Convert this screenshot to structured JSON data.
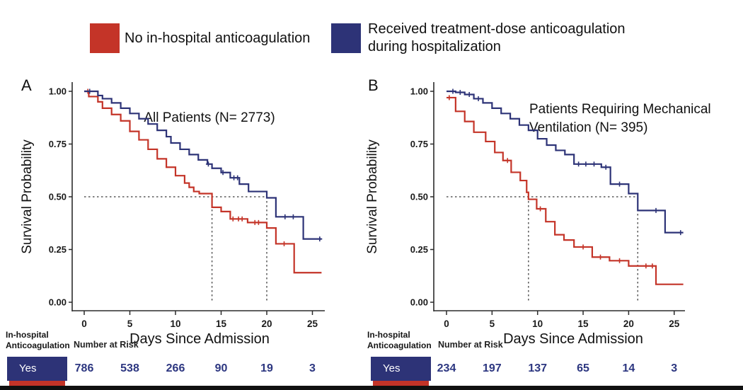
{
  "legend": {
    "items": [
      {
        "label": "No in-hospital anticoagulation",
        "color": "#C43428",
        "lines": [
          "No in-hospital anticoagulation"
        ]
      },
      {
        "label": "Received treatment-dose anticoagulation during hospitalization",
        "color": "#2D3377",
        "lines": [
          "Received treatment-dose anticoagulation",
          "during hospitalization"
        ]
      }
    ]
  },
  "colors": {
    "red": "#C43428",
    "navy": "#2D3377",
    "risk_number": "#2C3680",
    "axis": "#2b2b2b",
    "reference_line": "#5a5a5a",
    "bottom_bar": "#101010"
  },
  "chart_data": [
    {
      "type": "line",
      "subtype": "kaplan-meier-step",
      "panel_letter": "A",
      "title": "All Patients (N= 2773)",
      "title_lines": [
        "All Patients (N= 2773)"
      ],
      "xlabel": "Days Since Admission",
      "ylabel": "Survival Probability",
      "xlim": [
        0,
        26.5
      ],
      "ylim": [
        0,
        1
      ],
      "xticks": [
        0,
        5,
        10,
        15,
        20,
        25
      ],
      "ytick_labels": [
        "1.00",
        "0.75",
        "0.50",
        "0.25",
        "0.00"
      ],
      "grid": false,
      "reference_lines": {
        "survival_probability": 0.5,
        "median_day_no_anticoagulation": 14,
        "median_day_anticoagulation": 20
      },
      "series": [
        {
          "name": "No in-hospital anticoagulation",
          "color": "#C43428",
          "steps": [
            [
              0,
              1.0
            ],
            [
              0.5,
              0.975
            ],
            [
              1.5,
              0.95
            ],
            [
              2,
              0.92
            ],
            [
              3,
              0.89
            ],
            [
              4,
              0.86
            ],
            [
              5,
              0.81
            ],
            [
              6,
              0.77
            ],
            [
              7,
              0.725
            ],
            [
              8,
              0.68
            ],
            [
              9,
              0.64
            ],
            [
              10,
              0.6
            ],
            [
              11,
              0.565
            ],
            [
              11.5,
              0.545
            ],
            [
              12,
              0.525
            ],
            [
              12.6,
              0.515
            ],
            [
              14,
              0.45
            ],
            [
              15,
              0.43
            ],
            [
              16,
              0.395
            ],
            [
              17.9,
              0.378
            ],
            [
              20,
              0.352
            ],
            [
              21,
              0.277
            ],
            [
              23,
              0.14
            ],
            [
              26,
              0.14
            ]
          ],
          "censor_marks": [
            [
              0.4,
              1.0
            ],
            [
              16.3,
              0.395
            ],
            [
              16.9,
              0.395
            ],
            [
              17.3,
              0.395
            ],
            [
              18.7,
              0.378
            ],
            [
              19.1,
              0.378
            ],
            [
              21.9,
              0.277
            ]
          ]
        },
        {
          "name": "Received treatment-dose anticoagulation during hospitalization",
          "color": "#2D3377",
          "steps": [
            [
              0,
              1.0
            ],
            [
              1.5,
              0.98
            ],
            [
              2,
              0.965
            ],
            [
              3,
              0.945
            ],
            [
              4,
              0.92
            ],
            [
              5,
              0.895
            ],
            [
              6,
              0.87
            ],
            [
              7,
              0.845
            ],
            [
              8,
              0.815
            ],
            [
              9,
              0.785
            ],
            [
              9.5,
              0.755
            ],
            [
              10.5,
              0.725
            ],
            [
              11.5,
              0.7
            ],
            [
              12.5,
              0.675
            ],
            [
              13.5,
              0.655
            ],
            [
              14,
              0.635
            ],
            [
              15,
              0.615
            ],
            [
              16,
              0.59
            ],
            [
              17,
              0.56
            ],
            [
              18,
              0.525
            ],
            [
              20,
              0.495
            ],
            [
              21,
              0.405
            ],
            [
              24,
              0.3
            ],
            [
              26,
              0.3
            ]
          ],
          "censor_marks": [
            [
              0.6,
              1.0
            ],
            [
              13.6,
              0.655
            ],
            [
              15.2,
              0.615
            ],
            [
              16.4,
              0.59
            ],
            [
              16.8,
              0.59
            ],
            [
              22.0,
              0.405
            ],
            [
              22.9,
              0.405
            ],
            [
              25.8,
              0.3
            ]
          ]
        }
      ]
    },
    {
      "type": "line",
      "subtype": "kaplan-meier-step",
      "panel_letter": "B",
      "title": "Patients Requiring Mechanical Ventilation (N= 395)",
      "title_lines": [
        "Patients Requiring Mechanical",
        "Ventilation (N= 395)"
      ],
      "xlabel": "Days Since Admission",
      "ylabel": "Survival Probability",
      "xlim": [
        0,
        26.5
      ],
      "ylim": [
        0,
        1
      ],
      "xticks": [
        0,
        5,
        10,
        15,
        20,
        25
      ],
      "ytick_labels": [
        "1.00",
        "0.75",
        "0.50",
        "0.25",
        "0.00"
      ],
      "grid": false,
      "reference_lines": {
        "survival_probability": 0.5,
        "median_day_no_anticoagulation": 9,
        "median_day_anticoagulation": 21
      },
      "series": [
        {
          "name": "No in-hospital anticoagulation",
          "color": "#C43428",
          "steps": [
            [
              0,
              0.97
            ],
            [
              1,
              0.905
            ],
            [
              2,
              0.857
            ],
            [
              3,
              0.806
            ],
            [
              4.3,
              0.762
            ],
            [
              5.3,
              0.71
            ],
            [
              6.2,
              0.672
            ],
            [
              7.1,
              0.616
            ],
            [
              8.1,
              0.577
            ],
            [
              8.8,
              0.521
            ],
            [
              9,
              0.488
            ],
            [
              9.9,
              0.443
            ],
            [
              10.9,
              0.382
            ],
            [
              11.9,
              0.32
            ],
            [
              12.9,
              0.295
            ],
            [
              14,
              0.262
            ],
            [
              16,
              0.214
            ],
            [
              17.9,
              0.197
            ],
            [
              20,
              0.172
            ],
            [
              23,
              0.085
            ],
            [
              26,
              0.085
            ]
          ],
          "censor_marks": [
            [
              0.3,
              0.97
            ],
            [
              6.7,
              0.672
            ],
            [
              10.3,
              0.443
            ],
            [
              15,
              0.262
            ],
            [
              16.9,
              0.214
            ],
            [
              19,
              0.197
            ],
            [
              21.9,
              0.172
            ],
            [
              22.6,
              0.172
            ]
          ]
        },
        {
          "name": "Received treatment-dose anticoagulation during hospitalization",
          "color": "#2D3377",
          "steps": [
            [
              0,
              1.0
            ],
            [
              1,
              0.995
            ],
            [
              2,
              0.985
            ],
            [
              3,
              0.965
            ],
            [
              4,
              0.945
            ],
            [
              5,
              0.92
            ],
            [
              6,
              0.895
            ],
            [
              7,
              0.87
            ],
            [
              8,
              0.84
            ],
            [
              9,
              0.815
            ],
            [
              10,
              0.775
            ],
            [
              11,
              0.745
            ],
            [
              12,
              0.72
            ],
            [
              13,
              0.7
            ],
            [
              14,
              0.655
            ],
            [
              17,
              0.64
            ],
            [
              18,
              0.56
            ],
            [
              20,
              0.515
            ],
            [
              21,
              0.435
            ],
            [
              24,
              0.33
            ],
            [
              26,
              0.33
            ]
          ],
          "censor_marks": [
            [
              0.7,
              1.0
            ],
            [
              1.5,
              0.995
            ],
            [
              2.5,
              0.985
            ],
            [
              3.5,
              0.965
            ],
            [
              14.5,
              0.655
            ],
            [
              15.3,
              0.655
            ],
            [
              16.2,
              0.655
            ],
            [
              17.5,
              0.64
            ],
            [
              19,
              0.56
            ],
            [
              23,
              0.435
            ],
            [
              25.7,
              0.33
            ]
          ]
        }
      ]
    }
  ],
  "risk_tables": [
    {
      "panel": "A",
      "group_label_lines": [
        "In-hospital",
        "Anticoagulation"
      ],
      "header": "Number at Risk",
      "rows": [
        {
          "label": "Yes",
          "color": "#2D3377",
          "values": [
            786,
            538,
            266,
            90,
            19,
            3
          ]
        }
      ],
      "partial_next_row_color": "#C43428"
    },
    {
      "panel": "B",
      "group_label_lines": [
        "In-hospital",
        "Anticoagulation"
      ],
      "header": "Number at Risk",
      "rows": [
        {
          "label": "Yes",
          "color": "#2D3377",
          "values": [
            234,
            197,
            137,
            65,
            14,
            3
          ]
        }
      ],
      "partial_next_row_color": "#C43428"
    }
  ]
}
